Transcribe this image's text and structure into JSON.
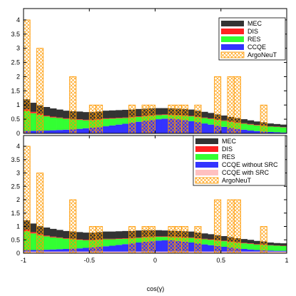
{
  "chart_data": [
    {
      "type": "bar",
      "title": "",
      "xlabel": "",
      "ylabel": "",
      "xlim": [
        -1,
        1
      ],
      "ylim": [
        0,
        4.4
      ],
      "yticks": [
        "0",
        "0.5",
        "1",
        "1.5",
        "2",
        "2.5",
        "3",
        "3.5",
        "4"
      ],
      "xticks": [],
      "grid": false,
      "legend_placement": "top-right",
      "stacked": true,
      "bin_centers": [
        -0.975,
        -0.925,
        -0.875,
        -0.825,
        -0.775,
        -0.725,
        -0.675,
        -0.625,
        -0.575,
        -0.525,
        -0.475,
        -0.425,
        -0.375,
        -0.325,
        -0.275,
        -0.225,
        -0.175,
        -0.125,
        -0.075,
        -0.025,
        0.025,
        0.075,
        0.125,
        0.175,
        0.225,
        0.275,
        0.325,
        0.375,
        0.425,
        0.475,
        0.525,
        0.575,
        0.625,
        0.675,
        0.725,
        0.775,
        0.825,
        0.875,
        0.925,
        0.975
      ],
      "series": [
        {
          "name": "CCQE",
          "color": "#3333ff",
          "values": [
            0.09,
            0.09,
            0.1,
            0.1,
            0.11,
            0.12,
            0.13,
            0.14,
            0.16,
            0.18,
            0.2,
            0.22,
            0.25,
            0.28,
            0.31,
            0.34,
            0.38,
            0.41,
            0.44,
            0.47,
            0.5,
            0.52,
            0.52,
            0.5,
            0.47,
            0.43,
            0.39,
            0.35,
            0.31,
            0.27,
            0.23,
            0.19,
            0.16,
            0.13,
            0.1,
            0.08,
            0.06,
            0.05,
            0.04,
            0.03
          ]
        },
        {
          "name": "RES",
          "color": "#33ff33",
          "values": [
            0.7,
            0.62,
            0.55,
            0.5,
            0.45,
            0.42,
            0.38,
            0.35,
            0.32,
            0.28,
            0.26,
            0.26,
            0.26,
            0.24,
            0.22,
            0.2,
            0.18,
            0.17,
            0.16,
            0.15,
            0.14,
            0.13,
            0.12,
            0.13,
            0.15,
            0.17,
            0.18,
            0.19,
            0.2,
            0.2,
            0.21,
            0.21,
            0.21,
            0.21,
            0.21,
            0.2,
            0.2,
            0.19,
            0.19,
            0.18
          ]
        },
        {
          "name": "DIS",
          "color": "#ff2222",
          "values": [
            0.06,
            0.05,
            0.04,
            0.03,
            0.03,
            0.02,
            0.02,
            0.02,
            0.02,
            0.02,
            0.02,
            0.02,
            0.02,
            0.02,
            0.02,
            0.02,
            0.02,
            0.02,
            0.02,
            0.02,
            0.02,
            0.02,
            0.02,
            0.02,
            0.02,
            0.02,
            0.02,
            0.02,
            0.02,
            0.02,
            0.02,
            0.02,
            0.02,
            0.02,
            0.02,
            0.02,
            0.02,
            0.01,
            0.01,
            0.01
          ]
        },
        {
          "name": "MEC",
          "color": "#333333",
          "values": [
            0.35,
            0.32,
            0.3,
            0.3,
            0.29,
            0.28,
            0.27,
            0.27,
            0.27,
            0.27,
            0.27,
            0.27,
            0.27,
            0.27,
            0.27,
            0.27,
            0.26,
            0.26,
            0.25,
            0.24,
            0.23,
            0.22,
            0.22,
            0.22,
            0.22,
            0.22,
            0.21,
            0.2,
            0.19,
            0.18,
            0.17,
            0.16,
            0.15,
            0.14,
            0.13,
            0.12,
            0.11,
            0.1,
            0.09,
            0.09
          ]
        }
      ],
      "overlay": {
        "name": "ArgoNeuT",
        "color": "#ff9900",
        "bar_width": 0.05,
        "bars": [
          {
            "x": -0.975,
            "y": 4.0
          },
          {
            "x": -0.875,
            "y": 3.0
          },
          {
            "x": -0.625,
            "y": 2.0
          },
          {
            "x": -0.475,
            "y": 1.0
          },
          {
            "x": -0.425,
            "y": 1.0
          },
          {
            "x": -0.175,
            "y": 1.0
          },
          {
            "x": -0.075,
            "y": 1.0
          },
          {
            "x": -0.025,
            "y": 1.0
          },
          {
            "x": 0.125,
            "y": 1.0
          },
          {
            "x": 0.175,
            "y": 1.0
          },
          {
            "x": 0.225,
            "y": 1.0
          },
          {
            "x": 0.325,
            "y": 1.0
          },
          {
            "x": 0.475,
            "y": 2.0
          },
          {
            "x": 0.575,
            "y": 2.0
          },
          {
            "x": 0.625,
            "y": 2.0
          },
          {
            "x": 0.825,
            "y": 1.0
          }
        ]
      }
    },
    {
      "type": "bar",
      "title": "",
      "xlabel": "cos(γ)",
      "ylabel": "",
      "xlim": [
        -1,
        1
      ],
      "ylim": [
        0,
        4.4
      ],
      "yticks": [
        "0",
        "0.5",
        "1",
        "1.5",
        "2",
        "2.5",
        "3",
        "3.5",
        "4"
      ],
      "xticks": [
        "-1",
        "-0.5",
        "0",
        "0.5",
        "1"
      ],
      "grid": false,
      "legend_placement": "top-right",
      "stacked": true,
      "bin_centers": [
        -0.975,
        -0.925,
        -0.875,
        -0.825,
        -0.775,
        -0.725,
        -0.675,
        -0.625,
        -0.575,
        -0.525,
        -0.475,
        -0.425,
        -0.375,
        -0.325,
        -0.275,
        -0.225,
        -0.175,
        -0.125,
        -0.075,
        -0.025,
        0.025,
        0.075,
        0.125,
        0.175,
        0.225,
        0.275,
        0.325,
        0.375,
        0.425,
        0.475,
        0.525,
        0.575,
        0.625,
        0.675,
        0.725,
        0.775,
        0.825,
        0.875,
        0.925,
        0.975
      ],
      "series": [
        {
          "name": "CCQE with SRC",
          "color": "#ffc0c0",
          "values": [
            0.06,
            0.06,
            0.06,
            0.06,
            0.06,
            0.06,
            0.06,
            0.06,
            0.06,
            0.06,
            0.06,
            0.06,
            0.06,
            0.06,
            0.06,
            0.06,
            0.06,
            0.06,
            0.06,
            0.06,
            0.06,
            0.06,
            0.06,
            0.06,
            0.06,
            0.06,
            0.06,
            0.06,
            0.06,
            0.06,
            0.06,
            0.06,
            0.06,
            0.06,
            0.06,
            0.06,
            0.06,
            0.06,
            0.06,
            0.06
          ]
        },
        {
          "name": "CCQE without SRC",
          "color": "#3333ff",
          "values": [
            0.06,
            0.06,
            0.06,
            0.07,
            0.08,
            0.09,
            0.1,
            0.11,
            0.12,
            0.14,
            0.16,
            0.18,
            0.2,
            0.22,
            0.25,
            0.28,
            0.31,
            0.34,
            0.37,
            0.39,
            0.41,
            0.42,
            0.42,
            0.4,
            0.37,
            0.34,
            0.3,
            0.27,
            0.24,
            0.21,
            0.18,
            0.15,
            0.12,
            0.1,
            0.08,
            0.06,
            0.05,
            0.04,
            0.03,
            0.03
          ]
        },
        {
          "name": "RES",
          "color": "#33ff33",
          "values": [
            0.7,
            0.62,
            0.55,
            0.5,
            0.45,
            0.42,
            0.38,
            0.35,
            0.32,
            0.28,
            0.26,
            0.26,
            0.26,
            0.24,
            0.22,
            0.2,
            0.18,
            0.17,
            0.16,
            0.15,
            0.14,
            0.13,
            0.12,
            0.13,
            0.15,
            0.17,
            0.18,
            0.19,
            0.2,
            0.2,
            0.21,
            0.21,
            0.21,
            0.21,
            0.21,
            0.2,
            0.2,
            0.19,
            0.19,
            0.18
          ]
        },
        {
          "name": "DIS",
          "color": "#ff2222",
          "values": [
            0.06,
            0.05,
            0.04,
            0.03,
            0.03,
            0.02,
            0.02,
            0.02,
            0.02,
            0.02,
            0.02,
            0.02,
            0.02,
            0.02,
            0.02,
            0.02,
            0.02,
            0.02,
            0.02,
            0.02,
            0.02,
            0.02,
            0.02,
            0.02,
            0.02,
            0.02,
            0.02,
            0.02,
            0.02,
            0.02,
            0.02,
            0.02,
            0.02,
            0.02,
            0.02,
            0.02,
            0.02,
            0.01,
            0.01,
            0.01
          ]
        },
        {
          "name": "MEC",
          "color": "#333333",
          "values": [
            0.35,
            0.32,
            0.3,
            0.3,
            0.29,
            0.28,
            0.27,
            0.27,
            0.27,
            0.27,
            0.27,
            0.27,
            0.27,
            0.27,
            0.27,
            0.27,
            0.26,
            0.26,
            0.25,
            0.24,
            0.23,
            0.22,
            0.22,
            0.22,
            0.22,
            0.22,
            0.21,
            0.2,
            0.19,
            0.18,
            0.17,
            0.16,
            0.15,
            0.14,
            0.13,
            0.12,
            0.11,
            0.1,
            0.09,
            0.09
          ]
        }
      ],
      "overlay": {
        "name": "ArgoNeuT",
        "color": "#ff9900",
        "bar_width": 0.05,
        "bars": [
          {
            "x": -0.975,
            "y": 4.0
          },
          {
            "x": -0.875,
            "y": 3.0
          },
          {
            "x": -0.625,
            "y": 2.0
          },
          {
            "x": -0.475,
            "y": 1.0
          },
          {
            "x": -0.425,
            "y": 1.0
          },
          {
            "x": -0.175,
            "y": 1.0
          },
          {
            "x": -0.075,
            "y": 1.0
          },
          {
            "x": -0.025,
            "y": 1.0
          },
          {
            "x": 0.125,
            "y": 1.0
          },
          {
            "x": 0.175,
            "y": 1.0
          },
          {
            "x": 0.225,
            "y": 1.0
          },
          {
            "x": 0.325,
            "y": 1.0
          },
          {
            "x": 0.475,
            "y": 2.0
          },
          {
            "x": 0.575,
            "y": 2.0
          },
          {
            "x": 0.625,
            "y": 2.0
          },
          {
            "x": 0.825,
            "y": 1.0
          }
        ]
      }
    }
  ]
}
